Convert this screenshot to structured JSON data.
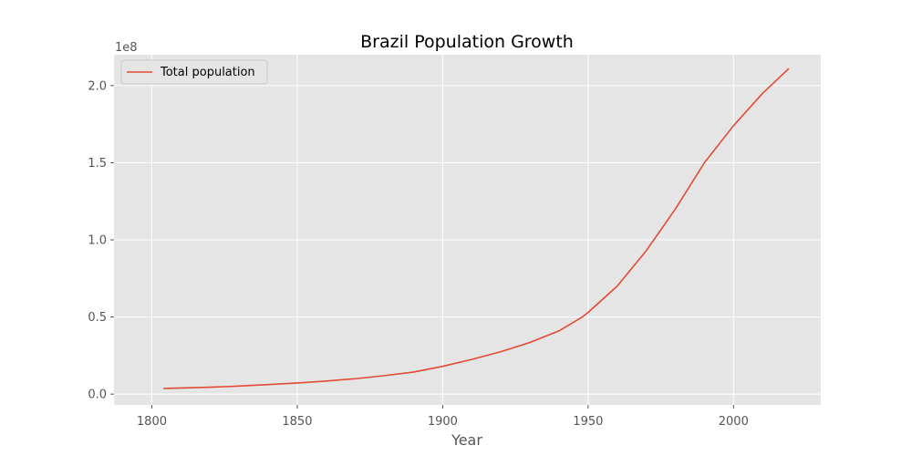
{
  "chart_data": {
    "type": "line",
    "title": "Brazil Population Growth",
    "xlabel": "Year",
    "ylabel": "",
    "y_offset_label": "1e8",
    "xlim": [
      1787,
      2030
    ],
    "ylim": [
      -0.07,
      2.2
    ],
    "x_ticks": [
      1800,
      1850,
      1900,
      1950,
      2000
    ],
    "y_ticks": [
      0.0,
      0.5,
      1.0,
      1.5,
      2.0
    ],
    "y_tick_labels": [
      "0.0",
      "0.5",
      "1.0",
      "1.5",
      "2.0"
    ],
    "grid": true,
    "legend_position": "top-left",
    "series": [
      {
        "name": "Total population",
        "color": "#E24A33",
        "x": [
          1804,
          1810,
          1820,
          1830,
          1840,
          1850,
          1860,
          1870,
          1880,
          1890,
          1900,
          1910,
          1920,
          1930,
          1940,
          1948,
          1950,
          1960,
          1970,
          1980,
          1990,
          2000,
          2010,
          2019
        ],
        "y": [
          0.037,
          0.04,
          0.045,
          0.052,
          0.062,
          0.072,
          0.085,
          0.1,
          0.12,
          0.143,
          0.18,
          0.225,
          0.275,
          0.335,
          0.41,
          0.5,
          0.53,
          0.7,
          0.93,
          1.2,
          1.5,
          1.74,
          1.95,
          2.11
        ]
      }
    ]
  }
}
